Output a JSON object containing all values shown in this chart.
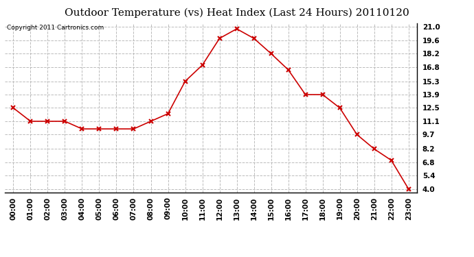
{
  "title": "Outdoor Temperature (vs) Heat Index (Last 24 Hours) 20110120",
  "copyright_text": "Copyright 2011 Cartronics.com",
  "x_labels": [
    "00:00",
    "01:00",
    "02:00",
    "03:00",
    "04:00",
    "05:00",
    "06:00",
    "07:00",
    "08:00",
    "09:00",
    "10:00",
    "11:00",
    "12:00",
    "13:00",
    "14:00",
    "15:00",
    "16:00",
    "17:00",
    "18:00",
    "19:00",
    "20:00",
    "21:00",
    "22:00",
    "23:00"
  ],
  "y_values": [
    12.5,
    11.1,
    11.1,
    11.1,
    10.3,
    10.3,
    10.3,
    10.3,
    11.1,
    11.9,
    15.3,
    17.0,
    19.8,
    20.8,
    19.8,
    18.2,
    16.5,
    13.9,
    13.9,
    12.5,
    9.7,
    8.2,
    7.0,
    4.0
  ],
  "line_color": "#cc0000",
  "marker": "x",
  "marker_size": 4,
  "marker_linewidth": 1.5,
  "grid_color": "#bbbbbb",
  "grid_style": "--",
  "background_color": "#ffffff",
  "yticks": [
    4.0,
    5.4,
    6.8,
    8.2,
    9.7,
    11.1,
    12.5,
    13.9,
    15.3,
    16.8,
    18.2,
    19.6,
    21.0
  ],
  "ylim": [
    3.6,
    21.4
  ],
  "title_fontsize": 11,
  "tick_fontsize": 7.5,
  "copyright_fontsize": 6.5,
  "line_width": 1.2
}
